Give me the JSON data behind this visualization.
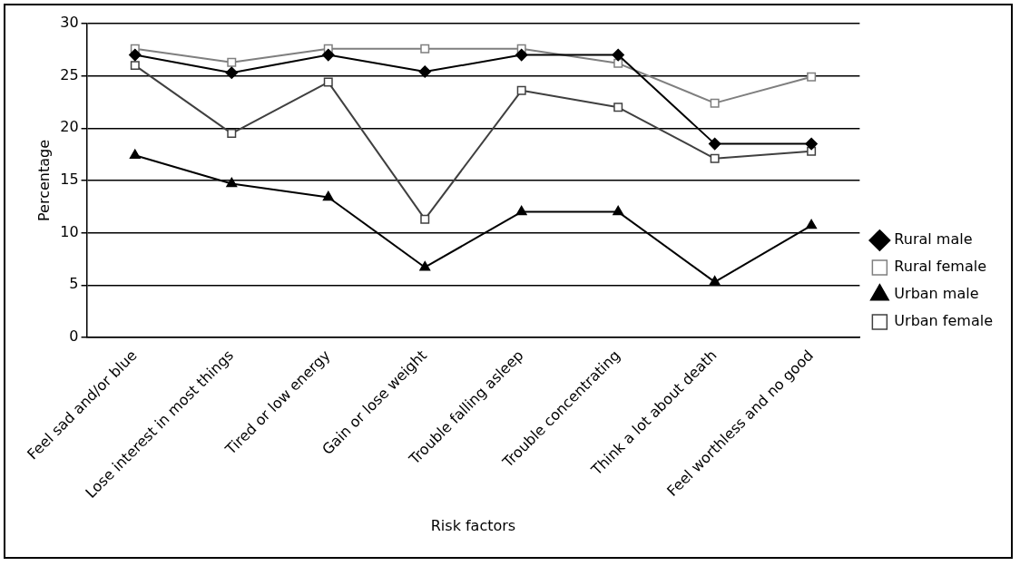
{
  "chart_data": {
    "type": "line",
    "xlabel": "Risk factors",
    "ylabel": "Percentage",
    "categories": [
      "Feel sad and/or blue",
      "Lose interest in most things",
      "Tired or low energy",
      "Gain or lose weight",
      "Trouble falling asleep",
      "Trouble concentrating",
      "Think a lot about death",
      "Feel worthless and no good"
    ],
    "series": [
      {
        "name": "Rural male",
        "color": "#000000",
        "marker": "diamond",
        "values": [
          27,
          25.3,
          27,
          25.4,
          27,
          27,
          18.5,
          18.5
        ]
      },
      {
        "name": "Rural female",
        "color": "#7f7f7f",
        "marker": "square",
        "values": [
          27.6,
          26.3,
          27.6,
          27.6,
          27.6,
          26.2,
          22.4,
          24.9
        ]
      },
      {
        "name": "Urban male",
        "color": "#000000",
        "marker": "triangle",
        "values": [
          17.4,
          14.7,
          13.4,
          6.7,
          12,
          12,
          5.3,
          10.7
        ]
      },
      {
        "name": "Urban female",
        "color": "#404040",
        "marker": "square",
        "values": [
          26,
          19.5,
          24.4,
          11.3,
          23.6,
          22,
          17.1,
          17.8
        ]
      }
    ],
    "ylim": [
      0,
      30
    ],
    "yticks": [
      0,
      5,
      10,
      15,
      20,
      25,
      30
    ],
    "grid": "y",
    "legend": "right",
    "line_style": "solid"
  }
}
